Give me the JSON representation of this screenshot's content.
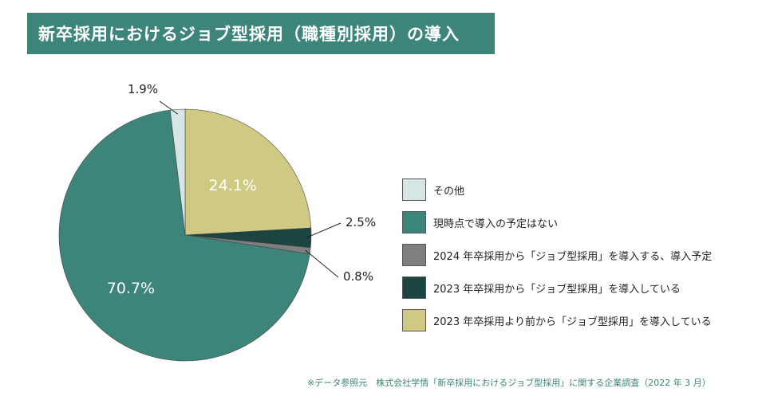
{
  "title": "新卒採用におけるジョブ型採用（職種別採用）の導入",
  "source": "※データ参照元　株式会社学情「新卒採用におけるジョブ型採用」に関する企業調査（2022 年 3 月）",
  "chart_data": {
    "type": "pie",
    "start_angle_deg": 0,
    "direction": "clockwise",
    "slices": [
      {
        "label": "2023 年卒採用より前から「ジョブ型採用」を導入している",
        "value": 24.1,
        "display": "24.1%",
        "color": "#d0c983"
      },
      {
        "label": "2023 年卒採用から「ジョブ型採用」を導入している",
        "value": 2.5,
        "display": "2.5%",
        "color": "#1c4440"
      },
      {
        "label": "2024 年卒採用から「ジョブ型採用」を導入する、導入予定",
        "value": 0.8,
        "display": "0.8%",
        "color": "#7f7f7f"
      },
      {
        "label": "現時点で導入の予定はない",
        "value": 70.7,
        "display": "70.7%",
        "color": "#3d847a"
      },
      {
        "label": "その他",
        "value": 1.9,
        "display": "1.9%",
        "color": "#d6e6e4"
      }
    ],
    "legend": {
      "placement": "right",
      "order": [
        {
          "label": "その他",
          "color": "#d6e6e4"
        },
        {
          "label": "現時点で導入の予定はない",
          "color": "#3d847a"
        },
        {
          "label": "2024 年卒採用から「ジョブ型採用」を導入する、導入予定",
          "color": "#7f7f7f"
        },
        {
          "label": "2023 年卒採用から「ジョブ型採用」を導入している",
          "color": "#1c4440"
        },
        {
          "label": "2023 年卒採用より前から「ジョブ型採用」を導入している",
          "color": "#d0c983"
        }
      ]
    }
  }
}
